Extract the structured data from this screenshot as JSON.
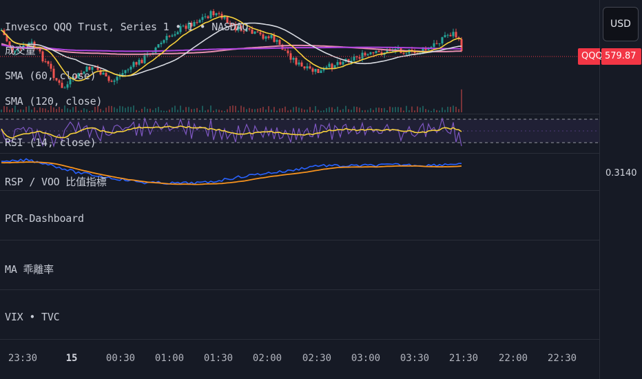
{
  "main_pane": {
    "symbol_title": "Invesco QQQ Trust, Series 1 • 1 • NASDAQ",
    "volume_label": "成交量",
    "sma_60_label": "SMA (60, close)",
    "sma_120_label": "SMA (120, close)",
    "price_tag_symbol": "QQQ",
    "price_tag_value": "579.87"
  },
  "rsi_pane": {
    "label": "RSI (14, close)"
  },
  "rsp_pane": {
    "label": "RSP / VOO 比值指標",
    "value": "0.3140"
  },
  "empty_panes": [
    {
      "label": "PCR-Dashboard"
    },
    {
      "label": "MA 乖離率"
    },
    {
      "label": "VIX • TVC"
    }
  ],
  "currency_button": "USD",
  "x_axis": {
    "ticks": [
      {
        "label": "23:30",
        "bold": false
      },
      {
        "label": "15",
        "bold": true
      },
      {
        "label": "00:30",
        "bold": false
      },
      {
        "label": "01:00",
        "bold": false
      },
      {
        "label": "01:30",
        "bold": false
      },
      {
        "label": "02:00",
        "bold": false
      },
      {
        "label": "02:30",
        "bold": false
      },
      {
        "label": "03:00",
        "bold": false
      },
      {
        "label": "03:30",
        "bold": false
      },
      {
        "label": "21:30",
        "bold": false
      },
      {
        "label": "22:00",
        "bold": false
      },
      {
        "label": "22:30",
        "bold": false
      }
    ]
  },
  "colors": {
    "bg": "#161a25",
    "up": "#26a69a",
    "down": "#ef5350",
    "ma_yellow": "#f7d13b",
    "ma_white": "#d8dbe2",
    "ma_purple": "#b044e0",
    "ma_pink": "#e88fb0",
    "rsi": "#7e57c2",
    "rsi_ma": "#f7d13b",
    "ratio": "#2962ff",
    "ratio_ma": "#f7931e",
    "price_tag": "#f23645"
  }
}
